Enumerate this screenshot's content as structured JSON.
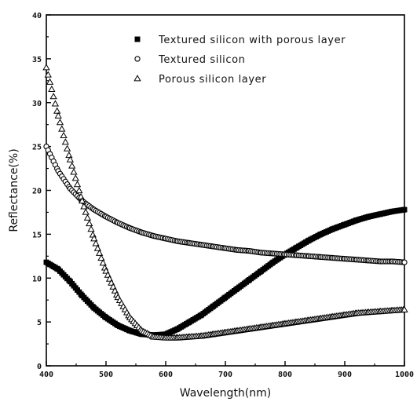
{
  "chart_data": {
    "type": "scatter",
    "title": "",
    "xlabel": "Wavelength(nm)",
    "ylabel": "Reflectance(%)",
    "xlim": [
      400,
      1000
    ],
    "ylim": [
      0,
      40
    ],
    "xticks": [
      "400",
      "500",
      "600",
      "700",
      "800",
      "900",
      "1000"
    ],
    "yticks": [
      "0",
      "5",
      "10",
      "15",
      "20",
      "25",
      "30",
      "35",
      "40"
    ],
    "grid": false,
    "legend_position": "top-right",
    "series": [
      {
        "name": "Textured silicon with porous layer",
        "marker": "filled-square",
        "color": "#000000",
        "x": [
          400,
          420,
          440,
          460,
          480,
          500,
          520,
          540,
          560,
          580,
          600,
          620,
          640,
          660,
          680,
          700,
          720,
          740,
          760,
          780,
          800,
          820,
          840,
          860,
          880,
          900,
          920,
          940,
          960,
          980,
          1000
        ],
        "y": [
          11.8,
          11.0,
          9.6,
          8.0,
          6.6,
          5.5,
          4.6,
          4.0,
          3.6,
          3.5,
          3.6,
          4.2,
          5.0,
          5.8,
          6.8,
          7.8,
          8.8,
          9.8,
          10.8,
          11.8,
          12.7,
          13.5,
          14.3,
          15.0,
          15.6,
          16.1,
          16.6,
          17.0,
          17.3,
          17.6,
          17.8
        ]
      },
      {
        "name": "Textured silicon",
        "marker": "open-circle",
        "color": "#000000",
        "x": [
          400,
          420,
          440,
          460,
          480,
          500,
          520,
          540,
          560,
          580,
          600,
          620,
          640,
          660,
          680,
          700,
          720,
          740,
          760,
          780,
          800,
          820,
          840,
          860,
          880,
          900,
          920,
          940,
          960,
          980,
          1000
        ],
        "y": [
          25.0,
          22.2,
          20.2,
          18.8,
          17.8,
          17.0,
          16.3,
          15.7,
          15.2,
          14.8,
          14.5,
          14.2,
          14.0,
          13.8,
          13.6,
          13.4,
          13.2,
          13.1,
          12.9,
          12.8,
          12.7,
          12.6,
          12.5,
          12.4,
          12.3,
          12.2,
          12.1,
          12.0,
          11.9,
          11.9,
          11.8
        ]
      },
      {
        "name": "Porous silicon layer",
        "marker": "open-triangle",
        "color": "#000000",
        "x": [
          400,
          420,
          440,
          460,
          480,
          500,
          520,
          540,
          560,
          580,
          600,
          620,
          640,
          660,
          680,
          700,
          720,
          740,
          760,
          780,
          800,
          820,
          840,
          860,
          880,
          900,
          920,
          940,
          960,
          980,
          1000
        ],
        "y": [
          34.0,
          28.5,
          23.5,
          18.8,
          14.5,
          10.8,
          7.8,
          5.5,
          4.0,
          3.3,
          3.2,
          3.2,
          3.3,
          3.4,
          3.6,
          3.8,
          4.0,
          4.2,
          4.4,
          4.6,
          4.8,
          5.0,
          5.2,
          5.4,
          5.6,
          5.8,
          6.0,
          6.1,
          6.2,
          6.3,
          6.4
        ]
      }
    ]
  }
}
